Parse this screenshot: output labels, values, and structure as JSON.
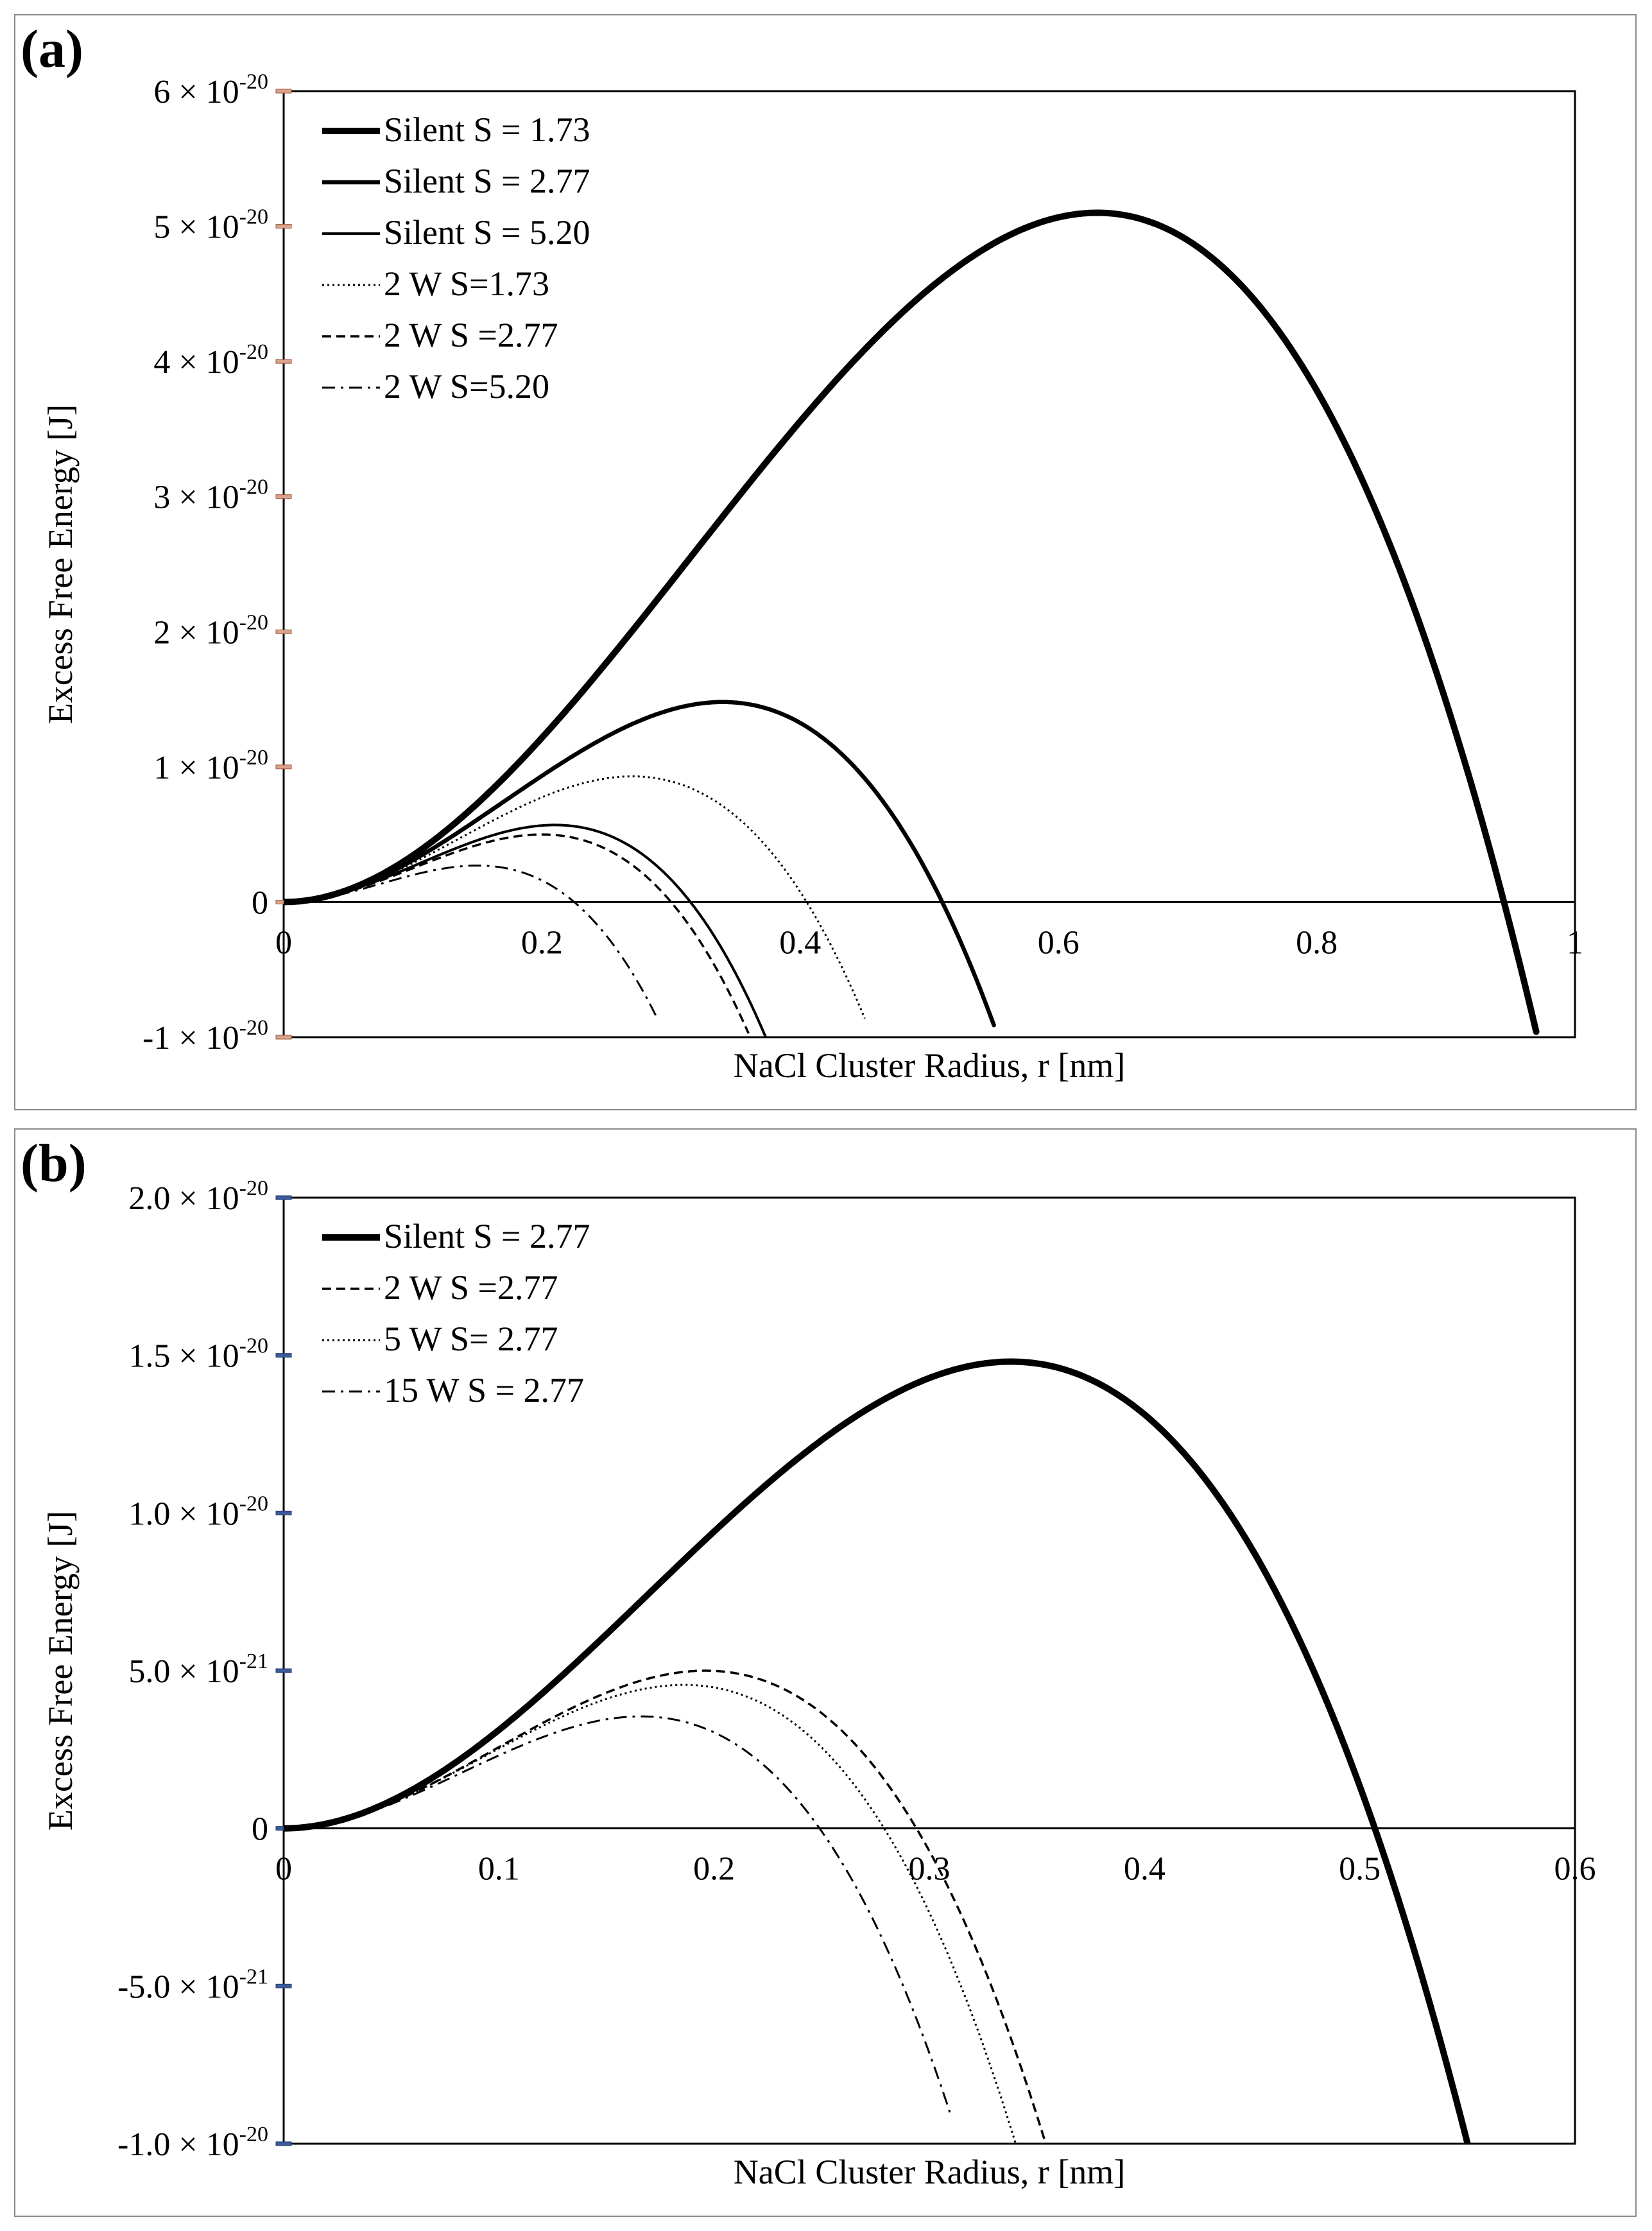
{
  "chart_data": [
    {
      "panel_label": "(a)",
      "type": "line",
      "xlabel": "NaCl Cluster Radius, r [nm]",
      "ylabel": "Excess Free Energy [J]",
      "xlim": [
        0,
        1
      ],
      "ylim": [
        -1e-20,
        6e-20
      ],
      "x_ticks": [
        0,
        0.2,
        0.4,
        0.6,
        0.8,
        1
      ],
      "x_tick_labels": [
        "0",
        "0.2",
        "0.4",
        "0.6",
        "0.8",
        "1"
      ],
      "y_ticks": [
        -1e-20,
        0,
        1e-20,
        2e-20,
        3e-20,
        4e-20,
        5e-20,
        6e-20
      ],
      "y_tick_labels": [
        {
          "mant": "-1 × 10",
          "exp": "-20"
        },
        {
          "mant": "0",
          "exp": ""
        },
        {
          "mant": "1 × 10",
          "exp": "-20"
        },
        {
          "mant": "2 × 10",
          "exp": "-20"
        },
        {
          "mant": "3 × 10",
          "exp": "-20"
        },
        {
          "mant": "4 × 10",
          "exp": "-20"
        },
        {
          "mant": "5 × 10",
          "exp": "-20"
        },
        {
          "mant": "6 × 10",
          "exp": "-20"
        }
      ],
      "legend_position": "top-left",
      "series": [
        {
          "name": "Silent S = 1.73",
          "style": "solid",
          "width": 10,
          "rc": 0.63,
          "peak": 5.1e-20,
          "xend": 0.97
        },
        {
          "name": "Silent S = 2.77",
          "style": "solid",
          "width": 6.5,
          "rc": 0.34,
          "peak": 1.48e-20,
          "xend": 0.55
        },
        {
          "name": "Silent S = 5.20",
          "style": "solid",
          "width": 4,
          "rc": 0.21,
          "peak": 5.7e-21,
          "xend": 0.38
        },
        {
          "name": "2 W S=1.73",
          "style": "dotted",
          "width": 3,
          "rc": 0.27,
          "peak": 9.3e-21,
          "xend": 0.45
        },
        {
          "name": "2 W S =2.77",
          "style": "dashed",
          "width": 3.5,
          "rc": 0.2,
          "peak": 5e-21,
          "xend": 0.36
        },
        {
          "name": "2 W S=5.20",
          "style": "dashdot",
          "width": 3,
          "rc": 0.15,
          "peak": 2.7e-21,
          "xend": 0.29
        }
      ]
    },
    {
      "panel_label": "(b)",
      "type": "line",
      "xlabel": "NaCl Cluster Radius, r [nm]",
      "ylabel": "Excess Free Energy [J]",
      "xlim": [
        0,
        0.6
      ],
      "ylim": [
        -1e-20,
        2e-20
      ],
      "x_ticks": [
        0,
        0.1,
        0.2,
        0.3,
        0.4,
        0.5,
        0.6
      ],
      "x_tick_labels": [
        "0",
        "0.1",
        "0.2",
        "0.3",
        "0.4",
        "0.5",
        "0.6"
      ],
      "y_ticks": [
        -1e-20,
        -5e-21,
        0,
        5e-21,
        1e-20,
        1.5e-20,
        2e-20
      ],
      "y_tick_labels": [
        {
          "mant": "-1.0 × 10",
          "exp": "-20"
        },
        {
          "mant": "-5.0 × 10",
          "exp": "-21"
        },
        {
          "mant": "0",
          "exp": ""
        },
        {
          "mant": "5.0 × 10",
          "exp": "-21"
        },
        {
          "mant": "1.0 × 10",
          "exp": "-20"
        },
        {
          "mant": "1.5 × 10",
          "exp": "-20"
        },
        {
          "mant": "2.0 × 10",
          "exp": "-20"
        }
      ],
      "legend_position": "top-left",
      "series": [
        {
          "name": "Silent S = 2.77",
          "style": "solid",
          "width": 10,
          "rc": 0.338,
          "peak": 1.48e-20,
          "xend": 0.55
        },
        {
          "name": "2 W S =2.77",
          "style": "dashed",
          "width": 3.5,
          "rc": 0.196,
          "peak": 5e-21,
          "xend": 0.355
        },
        {
          "name": "5 W  S= 2.77",
          "style": "dotted",
          "width": 3,
          "rc": 0.186,
          "peak": 4.55e-21,
          "xend": 0.342
        },
        {
          "name": "15 W S = 2.77",
          "style": "dashdot",
          "width": 3,
          "rc": 0.166,
          "peak": 3.55e-21,
          "xend": 0.31
        }
      ]
    }
  ]
}
